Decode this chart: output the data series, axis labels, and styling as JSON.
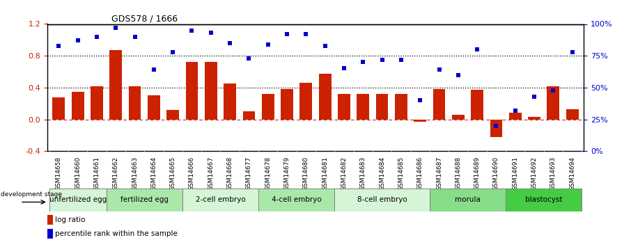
{
  "title": "GDS578 / 1666",
  "samples": [
    "GSM14658",
    "GSM14660",
    "GSM14661",
    "GSM14662",
    "GSM14663",
    "GSM14664",
    "GSM14665",
    "GSM14666",
    "GSM14667",
    "GSM14668",
    "GSM14677",
    "GSM14678",
    "GSM14679",
    "GSM14680",
    "GSM14681",
    "GSM14682",
    "GSM14683",
    "GSM14684",
    "GSM14685",
    "GSM14686",
    "GSM14687",
    "GSM14688",
    "GSM14689",
    "GSM14690",
    "GSM14691",
    "GSM14692",
    "GSM14693",
    "GSM14694"
  ],
  "log_ratio": [
    0.28,
    0.35,
    0.42,
    0.87,
    0.42,
    0.3,
    0.12,
    0.72,
    0.72,
    0.45,
    0.1,
    0.32,
    0.38,
    0.46,
    0.57,
    0.32,
    0.32,
    0.32,
    0.32,
    -0.03,
    0.38,
    0.06,
    0.37,
    -0.22,
    0.08,
    0.03,
    0.42,
    0.13
  ],
  "percentile": [
    83,
    87,
    90,
    97,
    90,
    64,
    78,
    95,
    93,
    85,
    73,
    84,
    92,
    92,
    83,
    65,
    70,
    72,
    72,
    40,
    64,
    60,
    80,
    20,
    32,
    43,
    48,
    78
  ],
  "groups": [
    {
      "label": "unfertilized egg",
      "start": 0,
      "end": 3,
      "color": "#d6f5d6"
    },
    {
      "label": "fertilized egg",
      "start": 3,
      "end": 7,
      "color": "#aae8aa"
    },
    {
      "label": "2-cell embryo",
      "start": 7,
      "end": 11,
      "color": "#d6f5d6"
    },
    {
      "label": "4-cell embryo",
      "start": 11,
      "end": 15,
      "color": "#aae8aa"
    },
    {
      "label": "8-cell embryo",
      "start": 15,
      "end": 20,
      "color": "#d6f5d6"
    },
    {
      "label": "morula",
      "start": 20,
      "end": 24,
      "color": "#88dd88"
    },
    {
      "label": "blastocyst",
      "start": 24,
      "end": 28,
      "color": "#44cc44"
    }
  ],
  "bar_color": "#cc2200",
  "dot_color": "#0000cc",
  "ylim_left": [
    -0.4,
    1.2
  ],
  "ylim_right": [
    0,
    100
  ],
  "yticks_left": [
    -0.4,
    0.0,
    0.4,
    0.8,
    1.2
  ],
  "yticks_right": [
    0,
    25,
    50,
    75,
    100
  ],
  "hlines": [
    0.4,
    0.8
  ],
  "legend_items": [
    "log ratio",
    "percentile rank within the sample"
  ]
}
